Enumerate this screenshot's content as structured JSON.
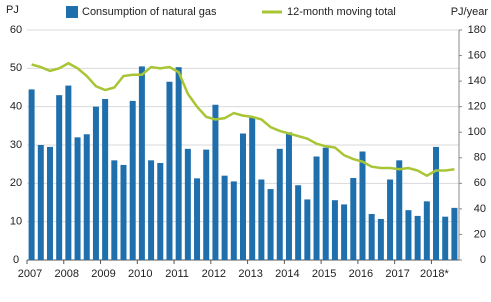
{
  "chart_data": {
    "type": "bar_line",
    "ylabel": "PJ",
    "y2label": "PJ/year",
    "categories": [
      "2007",
      null,
      null,
      null,
      "2008",
      null,
      null,
      null,
      "2009",
      null,
      null,
      null,
      "2010",
      null,
      null,
      null,
      "2011",
      null,
      null,
      null,
      "2012",
      null,
      null,
      null,
      "2013",
      null,
      null,
      null,
      "2014",
      null,
      null,
      null,
      "2015",
      null,
      null,
      null,
      "2016",
      null,
      null,
      null,
      "2017",
      null,
      null,
      null,
      "2018*",
      null,
      null
    ],
    "series": [
      {
        "name": "Consumption of natural gas",
        "type": "bar",
        "color": "#1f6fad",
        "values": [
          44.5,
          30,
          29.5,
          43,
          45.5,
          32,
          32.8,
          40,
          42,
          26,
          24.8,
          41.5,
          50.5,
          26,
          25.3,
          46.5,
          50.3,
          29,
          21.3,
          28.8,
          40.5,
          22,
          20.5,
          33,
          37.3,
          21,
          18.5,
          29,
          33.3,
          19.5,
          15.8,
          27,
          29.3,
          15.6,
          14.5,
          21.4,
          28.3,
          12,
          10.7,
          21,
          26,
          13,
          11.5,
          15.3,
          29.5,
          11.3,
          13.6
        ]
      },
      {
        "name": "12-month moving total",
        "type": "line",
        "axis": "y2",
        "color": "#a8c536",
        "values": [
          153,
          151,
          148,
          150,
          154,
          150,
          144,
          136,
          133,
          135,
          144,
          145,
          145,
          151,
          150,
          151,
          147,
          130,
          120,
          112,
          110,
          111,
          115,
          113,
          112,
          110,
          104,
          101,
          99,
          97,
          95,
          91,
          89,
          88,
          82,
          79,
          77,
          73,
          72,
          72,
          71,
          72,
          70,
          66,
          70,
          70,
          71
        ]
      }
    ],
    "ylim": [
      0,
      60
    ],
    "yticks": [
      0,
      10,
      20,
      30,
      40,
      50,
      60
    ],
    "y2lim": [
      0,
      180
    ],
    "y2ticks": [
      0,
      20,
      40,
      60,
      80,
      100,
      120,
      140,
      160,
      180
    ],
    "grid": true
  }
}
